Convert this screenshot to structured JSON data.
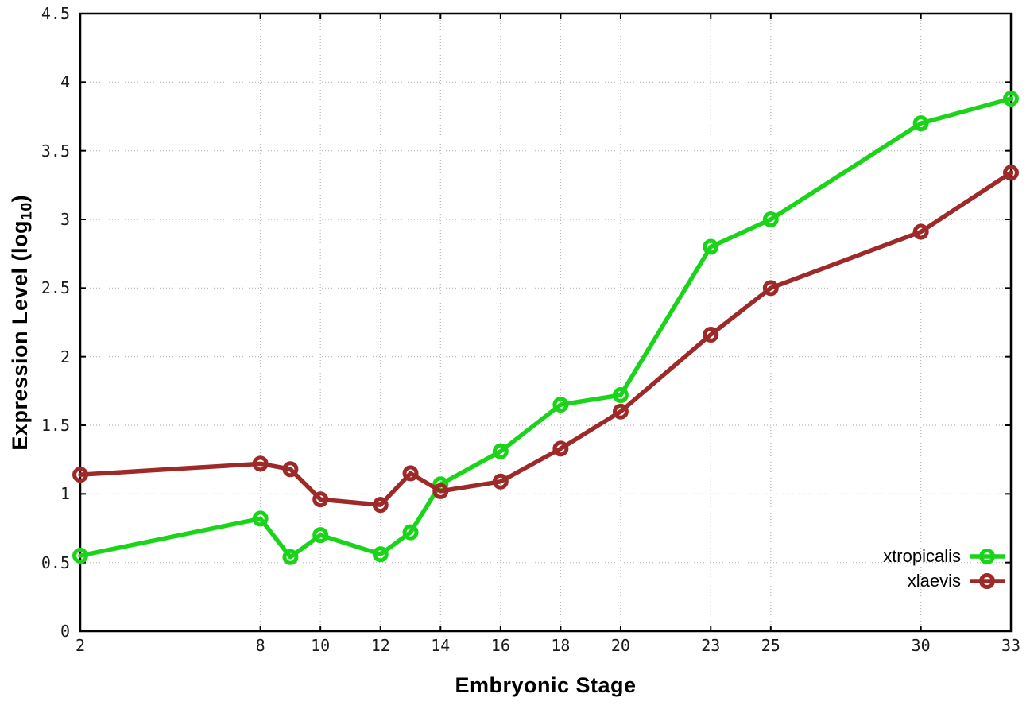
{
  "figure": {
    "ylabel_prefix": "Expression Level (log",
    "ylabel_sub": "10",
    "ylabel_suffix": ")"
  },
  "chart_data": {
    "type": "line",
    "title": "",
    "xlabel": "Embryonic Stage",
    "ylabel": "Expression Level (log10)",
    "x": [
      2,
      8,
      9,
      10,
      12,
      13,
      14,
      16,
      18,
      20,
      23,
      25,
      30,
      33
    ],
    "series": [
      {
        "name": "xtropicalis",
        "color": "#1ad41a",
        "marker": "open-circle",
        "values": [
          0.55,
          0.82,
          0.54,
          0.7,
          0.56,
          0.72,
          1.07,
          1.31,
          1.65,
          1.72,
          2.8,
          3.0,
          3.7,
          3.88
        ]
      },
      {
        "name": "xlaevis",
        "color": "#9e2929",
        "marker": "open-circle",
        "values": [
          1.14,
          1.22,
          1.18,
          0.96,
          0.92,
          1.15,
          1.02,
          1.09,
          1.33,
          1.6,
          2.16,
          2.5,
          2.91,
          3.34
        ]
      }
    ],
    "xlim": [
      2,
      33
    ],
    "ylim": [
      0,
      4.5
    ],
    "xtick_values": [
      2,
      8,
      10,
      12,
      14,
      16,
      18,
      20,
      23,
      25,
      30,
      33
    ],
    "xtick_labels": [
      "2",
      "8",
      "10",
      "12",
      "14",
      "16",
      "18",
      "20",
      "23",
      "25",
      "30",
      "33"
    ],
    "ytick_values": [
      0,
      0.5,
      1,
      1.5,
      2,
      2.5,
      3,
      3.5,
      4,
      4.5
    ],
    "ytick_labels": [
      "0",
      "0.5",
      "1",
      "1.5",
      "2",
      "2.5",
      "3",
      "3.5",
      "4",
      "4.5"
    ],
    "grid": true,
    "grid_color": "#b5b5b5",
    "axis_color": "#000000",
    "legend_position": "inside-bottom-right"
  }
}
